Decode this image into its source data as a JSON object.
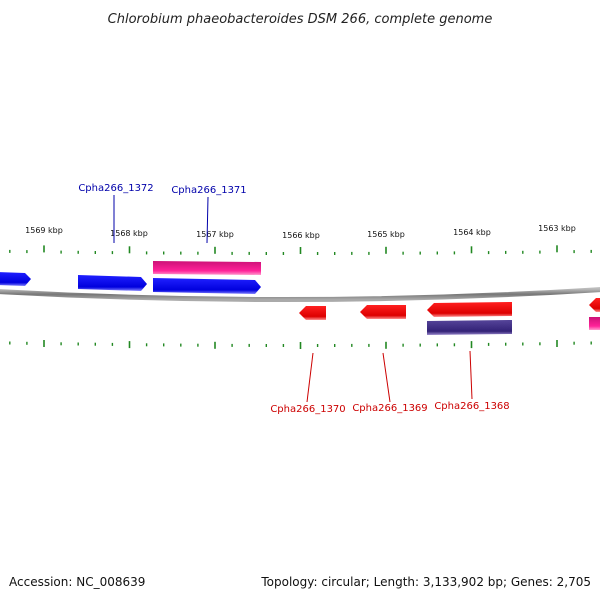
{
  "title": "Chlorobium phaeobacteroides DSM 266, complete genome",
  "footer": {
    "accession": "Accession: NC_008639",
    "summary": "Topology: circular; Length: 3,133,902 bp; Genes: 2,705"
  },
  "colors": {
    "forward_gene": "#0000ee",
    "reverse_gene": "#ee0000",
    "forward_rna": "#ee1188",
    "reverse_rna": "#443388",
    "ticks": "#228822",
    "backbone": "#888888",
    "forward_label": "#0000aa",
    "reverse_label": "#cc0000"
  },
  "kbp_labels": [
    "1569 kbp",
    "1568 kbp",
    "1567 kbp",
    "1566 kbp",
    "1565 kbp",
    "1564 kbp",
    "1563 kbp"
  ],
  "genes": {
    "forward_labeled": [
      "Cpha266_1372",
      "Cpha266_1371"
    ],
    "reverse_labeled": [
      "Cpha266_1370",
      "Cpha266_1369",
      "Cpha266_1368"
    ]
  }
}
